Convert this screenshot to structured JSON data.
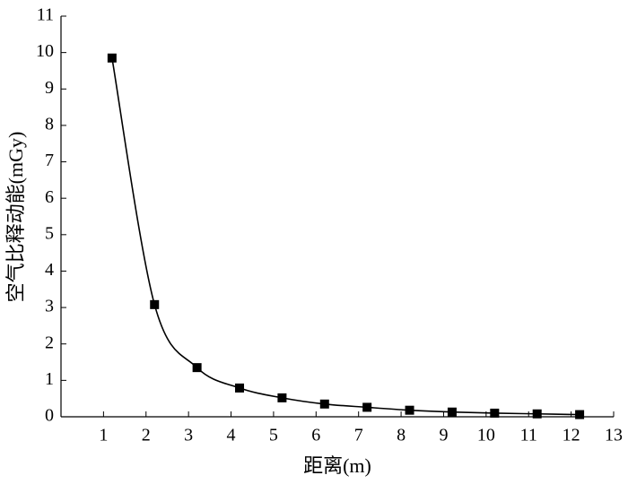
{
  "chart_data": {
    "type": "line",
    "x_label": "距离(m)",
    "y_label": "空气比释动能(mGy)",
    "x": [
      1.2,
      2.2,
      3.2,
      4.2,
      5.2,
      6.2,
      7.2,
      8.2,
      9.2,
      10.2,
      11.2,
      12.2
    ],
    "series": [
      {
        "color": "#000000",
        "marker": "square",
        "smooth": true,
        "values": [
          9.85,
          3.08,
          1.35,
          0.79,
          0.52,
          0.35,
          0.26,
          0.18,
          0.13,
          0.1,
          0.08,
          0.06
        ]
      }
    ],
    "xlim": [
      0,
      13
    ],
    "xticks": [
      1,
      2,
      3,
      4,
      5,
      6,
      7,
      8,
      9,
      10,
      11,
      12,
      13
    ],
    "ylim": [
      0,
      11
    ],
    "yticks": [
      0,
      1,
      2,
      3,
      4,
      5,
      6,
      7,
      8,
      9,
      10,
      11
    ],
    "grid": false
  }
}
